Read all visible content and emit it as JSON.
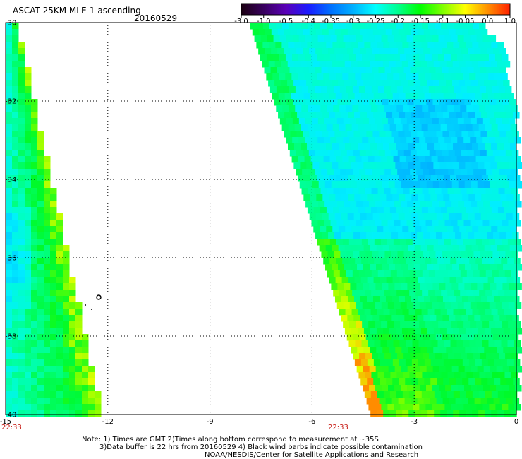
{
  "title": "ASCAT 25KM MLE-1 ascending",
  "date": "20160529",
  "colorbar": {
    "ticks": [
      "-3.0",
      "-1.0",
      "-0.5",
      "-0.4",
      "-0.35",
      "-0.3",
      "-0.25",
      "-0.2",
      "-0.15",
      "-0.1",
      "-0.05",
      "0.0",
      "1.0"
    ],
    "colors": [
      "#1a0010",
      "#38005e",
      "#5a00b8",
      "#1a1aff",
      "#0070ff",
      "#00b0ff",
      "#00ffff",
      "#00ff90",
      "#00ff00",
      "#80ff00",
      "#ffff00",
      "#ff9000",
      "#ff2000"
    ]
  },
  "axes": {
    "x_labels": [
      "-15",
      "-12",
      "-9",
      "-6",
      "-3",
      "0"
    ],
    "x_values": [
      -15,
      -12,
      -9,
      -6,
      -3,
      0
    ],
    "y_labels": [
      "-30",
      "-32",
      "-34",
      "-36",
      "-38",
      "-40"
    ],
    "y_values": [
      -30,
      -32,
      -34,
      -36,
      -38,
      -40
    ],
    "grid": "dotted"
  },
  "swath_times": [
    "22:33",
    "22:33"
  ],
  "notes": [
    "Note: 1) Times are GMT 2)Times along bottom correspond to measurement at ~35S",
    "3)Data buffer is 22 hrs from 20160529 4) Black wind barbs indicate possible contamination",
    "NOAA/NESDIS/Center for Satellite Applications and Research"
  ]
}
